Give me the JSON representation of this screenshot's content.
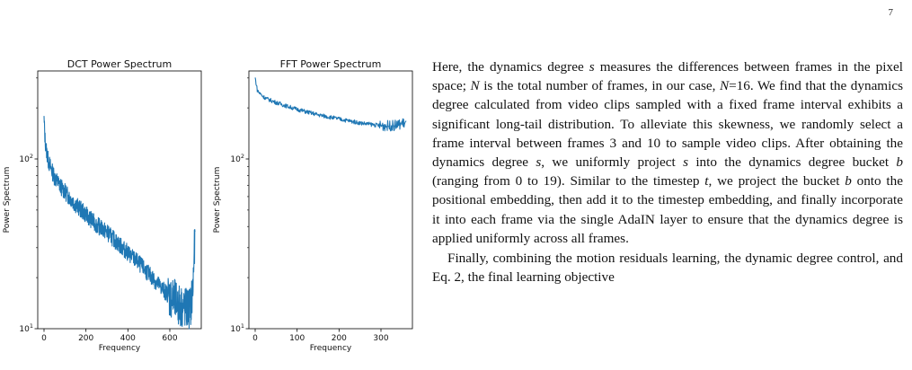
{
  "page_number": "7",
  "chart_data": [
    {
      "type": "line",
      "title": "DCT Power Spectrum",
      "xlabel": "Frequency",
      "ylabel": "Power Spectrum",
      "y_scale": "log",
      "xlim": [
        -30,
        750
      ],
      "ylim": [
        10,
        330
      ],
      "x_ticks": [
        0,
        200,
        400,
        600
      ],
      "y_ticks": [
        {
          "value": 10,
          "base": "10",
          "exp": "1"
        },
        {
          "value": 100,
          "base": "10",
          "exp": "2"
        }
      ],
      "grid": false,
      "color": "#1f77b4",
      "series": [
        {
          "x": [
            0,
            5,
            10,
            20,
            30,
            50,
            75,
            100,
            150,
            200,
            250,
            300,
            350,
            400,
            450,
            500,
            550,
            600,
            640,
            680,
            700,
            710,
            715,
            720
          ],
          "y": [
            170,
            130,
            115,
            98,
            90,
            78,
            70,
            64,
            54,
            47,
            41,
            37,
            32,
            28,
            24.5,
            21,
            18,
            15.5,
            13.8,
            13,
            13.5,
            17,
            26,
            32
          ],
          "noise": 0.05
        }
      ]
    },
    {
      "type": "line",
      "title": "FFT Power Spectrum",
      "xlabel": "Frequency",
      "ylabel": "Power Spectrum",
      "y_scale": "log",
      "xlim": [
        -15,
        375
      ],
      "ylim": [
        10,
        330
      ],
      "x_ticks": [
        0,
        100,
        200,
        300
      ],
      "y_ticks": [
        {
          "value": 10,
          "base": "10",
          "exp": "1"
        },
        {
          "value": 100,
          "base": "10",
          "exp": "2"
        }
      ],
      "grid": false,
      "color": "#1f77b4",
      "series": [
        {
          "x": [
            0,
            5,
            10,
            20,
            30,
            50,
            75,
            100,
            150,
            200,
            250,
            300,
            330,
            345,
            350,
            360
          ],
          "y": [
            300,
            255,
            245,
            232,
            225,
            215,
            205,
            196,
            182,
            172,
            163,
            157,
            157,
            160,
            163,
            162
          ],
          "noise": 0.012
        }
      ]
    }
  ],
  "text": {
    "p1": [
      "Here, the dynamics degree ",
      {
        "m": "s"
      },
      " measures the differences between frames in the pixel space; ",
      {
        "m": "N"
      },
      " is the total number of frames, in our case, ",
      {
        "m": "N"
      },
      "=16. We find that the dynamics degree calculated from video clips sampled with a fixed frame interval exhibits a significant long-tail distribution. To alleviate this skewness, we randomly select a frame interval between frames 3 and 10 to sample video clips. After obtaining the dynamics degree ",
      {
        "m": "s"
      },
      ", we uniformly project ",
      {
        "m": "s"
      },
      " into the dynamics degree bucket ",
      {
        "m": "b"
      },
      " (ranging from 0 to 19). Similar to the timestep ",
      {
        "m": "t"
      },
      ", we project the bucket ",
      {
        "m": "b"
      },
      " onto the positional embedding, then add it to the timestep embedding, and finally incorporate it into each frame via the single AdaIN layer to ensure that the dynamics degree is applied uniformly across all frames."
    ],
    "p2": [
      "Finally, combining the motion residuals learning, the dynamic degree control, and Eq. 2, the final learning objective"
    ]
  }
}
